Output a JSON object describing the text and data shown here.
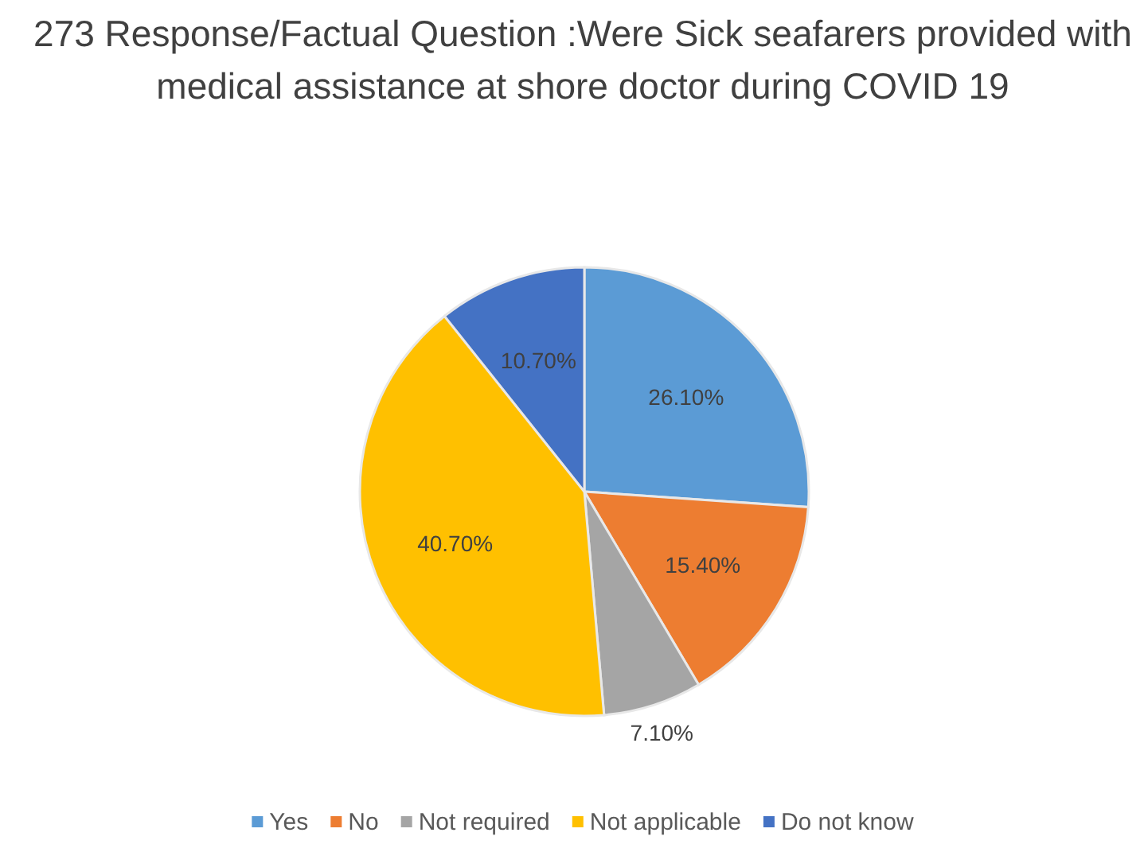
{
  "chart_data": {
    "type": "pie",
    "title": "273 Response/Factual Question :Were Sick seafarers provided with medical assistance at shore doctor during COVID 19",
    "categories": [
      "Yes",
      "No",
      "Not required",
      "Not applicable",
      "Do not know"
    ],
    "values": [
      26.1,
      15.4,
      7.1,
      40.7,
      10.7
    ],
    "value_labels": [
      "26.10%",
      "15.40%",
      "7.10%",
      "40.70%",
      "10.70%"
    ],
    "colors": [
      "#5b9bd5",
      "#ed7d31",
      "#a5a5a5",
      "#ffc000",
      "#4472c4"
    ],
    "legend": "bottom"
  }
}
